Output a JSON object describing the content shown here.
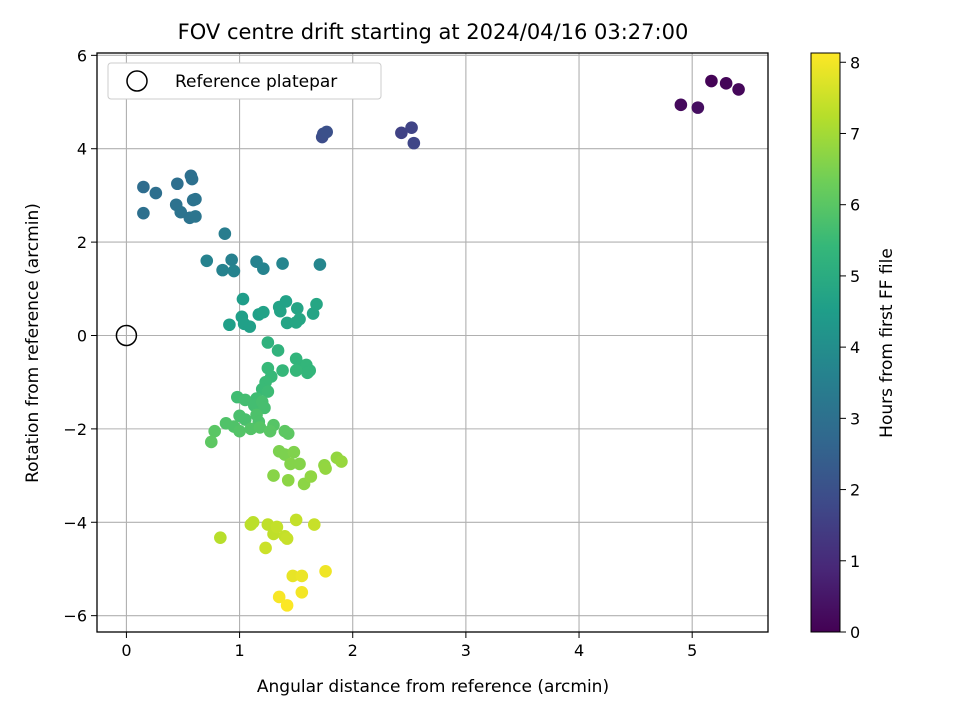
{
  "chart_data": {
    "type": "scatter",
    "title": "FOV centre drift starting at 2024/04/16 03:27:00",
    "xlabel": "Angular distance from reference (arcmin)",
    "ylabel": "Rotation from reference (arcmin)",
    "xlim": [
      -0.26,
      5.67
    ],
    "ylim": [
      -6.35,
      6.05
    ],
    "xticks": [
      0,
      1,
      2,
      3,
      4,
      5
    ],
    "yticks": [
      -6,
      -4,
      -2,
      0,
      2,
      4,
      6
    ],
    "grid": true,
    "legend": {
      "position": "top-left",
      "entries": [
        "Reference platepar"
      ]
    },
    "reference_point": {
      "x": 0,
      "y": 0,
      "label": "Reference platepar"
    },
    "colorbar": {
      "label": "Hours from first FF file",
      "colormap": "viridis",
      "range": [
        0,
        8.13
      ],
      "ticks": [
        0,
        1,
        2,
        3,
        4,
        5,
        6,
        7,
        8
      ]
    },
    "series": [
      {
        "points": [
          {
            "x": 5.17,
            "y": 5.45,
            "c": 0.05
          },
          {
            "x": 5.3,
            "y": 5.4,
            "c": 0.1
          },
          {
            "x": 5.41,
            "y": 5.27,
            "c": 0.15
          },
          {
            "x": 4.9,
            "y": 4.94,
            "c": 0.2
          },
          {
            "x": 5.05,
            "y": 4.88,
            "c": 0.3
          },
          {
            "x": 2.43,
            "y": 4.34,
            "c": 1.6
          },
          {
            "x": 2.52,
            "y": 4.45,
            "c": 1.65
          },
          {
            "x": 2.54,
            "y": 4.12,
            "c": 1.7
          },
          {
            "x": 1.73,
            "y": 4.25,
            "c": 1.9
          },
          {
            "x": 1.74,
            "y": 4.32,
            "c": 1.95
          },
          {
            "x": 1.77,
            "y": 4.36,
            "c": 2.0
          },
          {
            "x": 0.15,
            "y": 3.18,
            "c": 2.9
          },
          {
            "x": 0.26,
            "y": 3.05,
            "c": 2.95
          },
          {
            "x": 0.15,
            "y": 2.62,
            "c": 3.0
          },
          {
            "x": 0.45,
            "y": 3.25,
            "c": 2.95
          },
          {
            "x": 0.57,
            "y": 3.42,
            "c": 2.95
          },
          {
            "x": 0.58,
            "y": 3.35,
            "c": 3.0
          },
          {
            "x": 0.44,
            "y": 2.8,
            "c": 3.05
          },
          {
            "x": 0.48,
            "y": 2.64,
            "c": 3.1
          },
          {
            "x": 0.56,
            "y": 2.52,
            "c": 3.1
          },
          {
            "x": 0.59,
            "y": 2.9,
            "c": 3.05
          },
          {
            "x": 0.61,
            "y": 2.92,
            "c": 3.1
          },
          {
            "x": 0.61,
            "y": 2.55,
            "c": 3.15
          },
          {
            "x": 0.87,
            "y": 2.18,
            "c": 3.45
          },
          {
            "x": 0.71,
            "y": 1.6,
            "c": 3.6
          },
          {
            "x": 0.85,
            "y": 1.4,
            "c": 3.6
          },
          {
            "x": 0.93,
            "y": 1.62,
            "c": 3.55
          },
          {
            "x": 0.95,
            "y": 1.38,
            "c": 3.65
          },
          {
            "x": 1.15,
            "y": 1.58,
            "c": 3.6
          },
          {
            "x": 1.21,
            "y": 1.43,
            "c": 3.65
          },
          {
            "x": 1.38,
            "y": 1.54,
            "c": 3.7
          },
          {
            "x": 1.71,
            "y": 1.52,
            "c": 3.75
          },
          {
            "x": 1.03,
            "y": 0.78,
            "c": 4.5
          },
          {
            "x": 1.02,
            "y": 0.4,
            "c": 4.55
          },
          {
            "x": 1.04,
            "y": 0.25,
            "c": 4.6
          },
          {
            "x": 0.91,
            "y": 0.23,
            "c": 4.55
          },
          {
            "x": 1.09,
            "y": 0.19,
            "c": 4.6
          },
          {
            "x": 1.17,
            "y": 0.45,
            "c": 4.6
          },
          {
            "x": 1.21,
            "y": 0.5,
            "c": 4.65
          },
          {
            "x": 1.35,
            "y": 0.61,
            "c": 4.7
          },
          {
            "x": 1.36,
            "y": 0.52,
            "c": 4.7
          },
          {
            "x": 1.41,
            "y": 0.73,
            "c": 4.65
          },
          {
            "x": 1.42,
            "y": 0.27,
            "c": 4.75
          },
          {
            "x": 1.5,
            "y": 0.28,
            "c": 4.8
          },
          {
            "x": 1.51,
            "y": 0.58,
            "c": 4.75
          },
          {
            "x": 1.53,
            "y": 0.35,
            "c": 4.8
          },
          {
            "x": 1.65,
            "y": 0.47,
            "c": 4.75
          },
          {
            "x": 1.68,
            "y": 0.67,
            "c": 4.8
          },
          {
            "x": 1.25,
            "y": -0.15,
            "c": 5.2
          },
          {
            "x": 1.34,
            "y": -0.32,
            "c": 5.25
          },
          {
            "x": 1.5,
            "y": -0.5,
            "c": 5.3
          },
          {
            "x": 1.54,
            "y": -0.65,
            "c": 5.3
          },
          {
            "x": 1.59,
            "y": -0.63,
            "c": 5.35
          },
          {
            "x": 1.62,
            "y": -0.75,
            "c": 5.35
          },
          {
            "x": 1.6,
            "y": -0.8,
            "c": 5.35
          },
          {
            "x": 1.5,
            "y": -0.75,
            "c": 5.4
          },
          {
            "x": 1.38,
            "y": -0.75,
            "c": 5.4
          },
          {
            "x": 1.25,
            "y": -0.7,
            "c": 5.45
          },
          {
            "x": 1.28,
            "y": -0.88,
            "c": 5.45
          },
          {
            "x": 1.23,
            "y": -1.0,
            "c": 5.5
          },
          {
            "x": 1.2,
            "y": -1.15,
            "c": 5.5
          },
          {
            "x": 1.25,
            "y": -1.2,
            "c": 5.55
          },
          {
            "x": 1.15,
            "y": -1.35,
            "c": 5.6
          },
          {
            "x": 0.98,
            "y": -1.32,
            "c": 5.6
          },
          {
            "x": 1.05,
            "y": -1.38,
            "c": 5.65
          },
          {
            "x": 1.13,
            "y": -1.5,
            "c": 5.65
          },
          {
            "x": 1.2,
            "y": -1.42,
            "c": 5.7
          },
          {
            "x": 1.22,
            "y": -1.55,
            "c": 5.7
          },
          {
            "x": 1.0,
            "y": -1.72,
            "c": 5.75
          },
          {
            "x": 1.05,
            "y": -1.8,
            "c": 5.75
          },
          {
            "x": 1.15,
            "y": -1.7,
            "c": 5.8
          },
          {
            "x": 1.17,
            "y": -1.85,
            "c": 5.8
          },
          {
            "x": 0.88,
            "y": -1.88,
            "c": 5.85
          },
          {
            "x": 0.95,
            "y": -1.95,
            "c": 5.85
          },
          {
            "x": 1.0,
            "y": -2.05,
            "c": 5.9
          },
          {
            "x": 1.1,
            "y": -2.0,
            "c": 5.9
          },
          {
            "x": 1.18,
            "y": -1.97,
            "c": 5.95
          },
          {
            "x": 1.3,
            "y": -1.92,
            "c": 5.95
          },
          {
            "x": 1.27,
            "y": -2.05,
            "c": 6.0
          },
          {
            "x": 1.4,
            "y": -2.05,
            "c": 6.05
          },
          {
            "x": 1.43,
            "y": -2.1,
            "c": 6.05
          },
          {
            "x": 0.78,
            "y": -2.05,
            "c": 6.0
          },
          {
            "x": 0.75,
            "y": -2.28,
            "c": 6.05
          },
          {
            "x": 1.35,
            "y": -2.48,
            "c": 6.5
          },
          {
            "x": 1.4,
            "y": -2.55,
            "c": 6.5
          },
          {
            "x": 1.48,
            "y": -2.5,
            "c": 6.55
          },
          {
            "x": 1.45,
            "y": -2.75,
            "c": 6.6
          },
          {
            "x": 1.53,
            "y": -2.75,
            "c": 6.6
          },
          {
            "x": 1.3,
            "y": -3.0,
            "c": 6.65
          },
          {
            "x": 1.43,
            "y": -3.1,
            "c": 6.7
          },
          {
            "x": 1.57,
            "y": -3.18,
            "c": 6.7
          },
          {
            "x": 1.63,
            "y": -3.02,
            "c": 6.75
          },
          {
            "x": 1.75,
            "y": -2.78,
            "c": 6.75
          },
          {
            "x": 1.76,
            "y": -2.85,
            "c": 6.8
          },
          {
            "x": 1.86,
            "y": -2.62,
            "c": 6.8
          },
          {
            "x": 1.9,
            "y": -2.7,
            "c": 6.85
          },
          {
            "x": 0.83,
            "y": -4.33,
            "c": 7.25
          },
          {
            "x": 1.1,
            "y": -4.05,
            "c": 7.3
          },
          {
            "x": 1.12,
            "y": -4.0,
            "c": 7.3
          },
          {
            "x": 1.25,
            "y": -4.05,
            "c": 7.35
          },
          {
            "x": 1.3,
            "y": -4.25,
            "c": 7.35
          },
          {
            "x": 1.33,
            "y": -4.1,
            "c": 7.4
          },
          {
            "x": 1.4,
            "y": -4.3,
            "c": 7.4
          },
          {
            "x": 1.42,
            "y": -4.35,
            "c": 7.45
          },
          {
            "x": 1.5,
            "y": -3.95,
            "c": 7.4
          },
          {
            "x": 1.66,
            "y": -4.05,
            "c": 7.45
          },
          {
            "x": 1.23,
            "y": -4.55,
            "c": 7.5
          },
          {
            "x": 1.47,
            "y": -5.15,
            "c": 7.85
          },
          {
            "x": 1.55,
            "y": -5.15,
            "c": 7.9
          },
          {
            "x": 1.76,
            "y": -5.05,
            "c": 7.95
          },
          {
            "x": 1.55,
            "y": -5.5,
            "c": 8.0
          },
          {
            "x": 1.35,
            "y": -5.6,
            "c": 8.05
          },
          {
            "x": 1.42,
            "y": -5.78,
            "c": 8.1
          }
        ]
      }
    ]
  }
}
